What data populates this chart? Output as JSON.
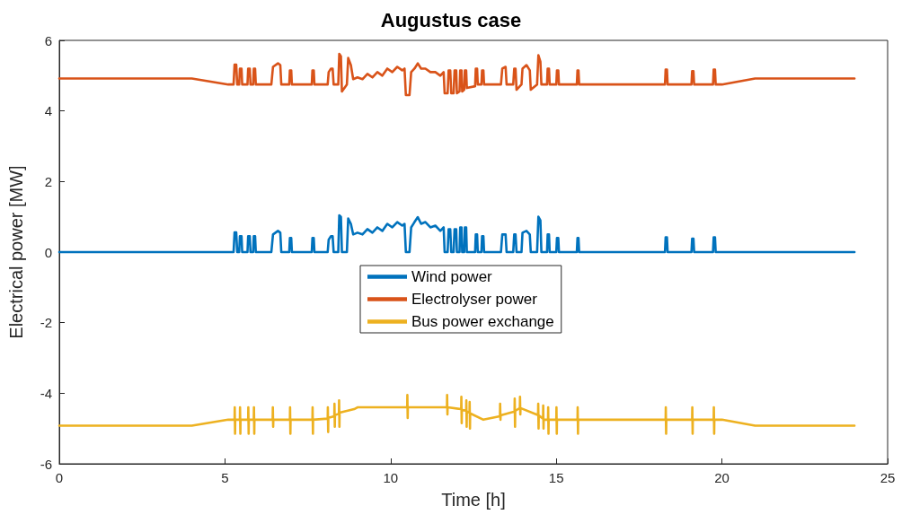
{
  "chart_data": {
    "type": "line",
    "title": "Augustus case",
    "xlabel": "Time [h]",
    "ylabel": "Electrical power [MW]",
    "xlim": [
      0,
      25
    ],
    "xticks": [
      0,
      5,
      10,
      15,
      20,
      25
    ],
    "ylim": [
      -6,
      6
    ],
    "yticks": [
      -6,
      -4,
      -2,
      0,
      2,
      4,
      6
    ],
    "grid": false,
    "legend": "center",
    "marker": "none",
    "line_style": "solid",
    "series": [
      {
        "name": "Wind power",
        "color": "#0072bd",
        "x": [
          0,
          5.26,
          5.29,
          5.34,
          5.37,
          5.43,
          5.45,
          5.5,
          5.52,
          5.68,
          5.7,
          5.75,
          5.77,
          5.85,
          5.87,
          5.91,
          5.93,
          6.4,
          6.45,
          6.6,
          6.67,
          6.7,
          6.94,
          6.96,
          7.0,
          7.02,
          7.62,
          7.64,
          7.68,
          7.7,
          8.1,
          8.13,
          8.2,
          8.25,
          8.28,
          8.42,
          8.45,
          8.5,
          8.53,
          8.68,
          8.72,
          8.8,
          8.87,
          9.0,
          9.15,
          9.3,
          9.45,
          9.6,
          9.75,
          9.9,
          10.05,
          10.2,
          10.35,
          10.42,
          10.46,
          10.57,
          10.62,
          10.72,
          10.82,
          10.92,
          11.05,
          11.2,
          11.35,
          11.5,
          11.6,
          11.63,
          11.72,
          11.75,
          11.8,
          11.83,
          11.9,
          11.93,
          11.98,
          12.0,
          12.08,
          12.1,
          12.14,
          12.16,
          12.22,
          12.24,
          12.28,
          12.3,
          12.55,
          12.57,
          12.61,
          12.63,
          12.74,
          12.76,
          12.8,
          12.82,
          13.33,
          13.37,
          13.47,
          13.5,
          13.7,
          13.73,
          13.77,
          13.8,
          13.95,
          13.98,
          14.1,
          14.2,
          14.23,
          14.42,
          14.46,
          14.52,
          14.55,
          14.72,
          14.74,
          14.78,
          14.8,
          15.0,
          15.02,
          15.06,
          15.08,
          15.62,
          15.64,
          15.67,
          15.69,
          18.28,
          18.3,
          18.34,
          18.36,
          19.08,
          19.1,
          19.14,
          19.16,
          19.73,
          19.75,
          19.79,
          19.81,
          24
        ],
        "values": [
          0,
          0,
          0.56,
          0.56,
          0,
          0,
          0.45,
          0.45,
          0,
          0,
          0.45,
          0.45,
          0,
          0,
          0.45,
          0.45,
          0,
          0,
          0.5,
          0.6,
          0.55,
          0,
          0,
          0.4,
          0.4,
          0,
          0,
          0.4,
          0.4,
          0,
          0,
          0.35,
          0.45,
          0.45,
          0,
          0,
          1.04,
          1.0,
          0,
          0,
          0.95,
          0.8,
          0.5,
          0.55,
          0.5,
          0.65,
          0.55,
          0.7,
          0.6,
          0.8,
          0.7,
          0.85,
          0.75,
          0.8,
          0,
          0,
          0.7,
          0.85,
          0.99,
          0.8,
          0.85,
          0.7,
          0.75,
          0.6,
          0.7,
          0,
          0,
          0.65,
          0.65,
          0,
          0,
          0.65,
          0.65,
          0,
          0,
          0.7,
          0.7,
          0,
          0,
          0.7,
          0.7,
          0,
          0,
          0.5,
          0.5,
          0,
          0,
          0.45,
          0.45,
          0,
          0,
          0.5,
          0.5,
          0,
          0,
          0.5,
          0.5,
          0,
          0,
          0.55,
          0.6,
          0.5,
          0,
          0,
          1.0,
          0.9,
          0,
          0,
          0.5,
          0.5,
          0,
          0,
          0.4,
          0.4,
          0,
          0,
          0.4,
          0.4,
          0,
          0,
          0.42,
          0.42,
          0,
          0,
          0.38,
          0.38,
          0,
          0,
          0.42,
          0.42,
          0,
          0
        ]
      },
      {
        "name": "Electrolyser power",
        "color": "#d95319",
        "x": [
          0,
          4.0,
          5.1,
          5.26,
          5.29,
          5.34,
          5.37,
          5.43,
          5.45,
          5.5,
          5.52,
          5.68,
          5.7,
          5.75,
          5.77,
          5.85,
          5.87,
          5.91,
          5.93,
          6.4,
          6.45,
          6.6,
          6.67,
          6.7,
          6.94,
          6.96,
          7.0,
          7.02,
          7.62,
          7.64,
          7.68,
          7.7,
          8.1,
          8.13,
          8.2,
          8.25,
          8.28,
          8.42,
          8.45,
          8.5,
          8.53,
          8.68,
          8.72,
          8.8,
          8.87,
          9.0,
          9.15,
          9.3,
          9.45,
          9.6,
          9.75,
          9.9,
          10.05,
          10.2,
          10.35,
          10.42,
          10.46,
          10.57,
          10.62,
          10.72,
          10.82,
          10.92,
          11.05,
          11.2,
          11.35,
          11.5,
          11.6,
          11.63,
          11.72,
          11.75,
          11.8,
          11.83,
          11.9,
          11.93,
          11.98,
          12.0,
          12.08,
          12.1,
          12.14,
          12.16,
          12.22,
          12.24,
          12.28,
          12.3,
          12.55,
          12.57,
          12.61,
          12.63,
          12.74,
          12.76,
          12.8,
          12.82,
          13.33,
          13.37,
          13.47,
          13.5,
          13.7,
          13.73,
          13.77,
          13.8,
          13.95,
          13.98,
          14.1,
          14.2,
          14.23,
          14.42,
          14.46,
          14.52,
          14.55,
          14.72,
          14.74,
          14.78,
          14.8,
          15.0,
          15.02,
          15.06,
          15.08,
          15.62,
          15.64,
          15.67,
          15.69,
          18.28,
          18.3,
          18.34,
          18.36,
          19.08,
          19.1,
          19.14,
          19.16,
          19.73,
          19.75,
          19.79,
          19.81,
          20.0,
          21.0,
          24
        ],
        "values": [
          4.92,
          4.92,
          4.75,
          4.75,
          5.31,
          5.31,
          4.75,
          4.75,
          5.2,
          5.2,
          4.75,
          4.75,
          5.2,
          5.2,
          4.75,
          4.75,
          5.2,
          5.2,
          4.75,
          4.75,
          5.25,
          5.35,
          5.3,
          4.75,
          4.75,
          5.15,
          5.15,
          4.75,
          4.75,
          5.15,
          5.15,
          4.75,
          4.75,
          5.1,
          5.2,
          5.2,
          4.75,
          4.75,
          5.62,
          5.55,
          4.55,
          4.75,
          5.5,
          5.3,
          4.9,
          4.95,
          4.9,
          5.05,
          4.95,
          5.1,
          5.0,
          5.2,
          5.1,
          5.25,
          5.15,
          5.2,
          4.45,
          4.45,
          5.1,
          5.2,
          5.35,
          5.2,
          5.2,
          5.1,
          5.1,
          5.0,
          5.1,
          4.5,
          4.5,
          5.15,
          5.15,
          4.5,
          4.5,
          5.15,
          5.15,
          4.5,
          4.55,
          5.15,
          5.15,
          4.55,
          4.6,
          5.15,
          5.15,
          4.65,
          4.7,
          5.2,
          5.2,
          4.75,
          4.75,
          5.15,
          5.15,
          4.75,
          4.75,
          5.2,
          5.25,
          4.75,
          4.75,
          5.2,
          5.2,
          4.6,
          4.75,
          5.2,
          5.3,
          5.15,
          4.6,
          4.75,
          5.58,
          5.4,
          4.75,
          4.75,
          5.2,
          5.2,
          4.75,
          4.75,
          5.15,
          5.15,
          4.75,
          4.75,
          5.15,
          5.15,
          4.75,
          4.75,
          5.17,
          5.17,
          4.75,
          4.75,
          5.13,
          5.13,
          4.75,
          4.75,
          5.17,
          5.17,
          4.75,
          4.75,
          4.92,
          4.92
        ]
      },
      {
        "name": "Bus power exchange",
        "color": "#edb120",
        "x": [
          0,
          4,
          5.1,
          5.29,
          5.295,
          5.305,
          5.31,
          5.45,
          5.455,
          5.465,
          5.47,
          5.7,
          5.705,
          5.715,
          5.72,
          5.87,
          5.875,
          5.885,
          5.89,
          6.44,
          6.445,
          6.455,
          6.46,
          6.96,
          6.965,
          6.975,
          6.98,
          7.64,
          7.645,
          7.655,
          7.66,
          8.1,
          8.105,
          8.115,
          8.12,
          8.3,
          8.305,
          8.315,
          8.32,
          8.44,
          8.445,
          8.455,
          8.46,
          8.9,
          9.0,
          10.5,
          10.505,
          10.515,
          10.52,
          11.7,
          11.705,
          11.715,
          11.72,
          12.13,
          12.135,
          12.145,
          12.15,
          12.28,
          12.285,
          12.295,
          12.3,
          12.38,
          12.385,
          12.395,
          12.4,
          12.8,
          13.3,
          13.305,
          13.315,
          13.32,
          13.74,
          13.745,
          13.755,
          13.76,
          13.9,
          13.905,
          13.915,
          13.92,
          14.45,
          14.455,
          14.465,
          14.47,
          14.6,
          14.605,
          14.615,
          14.62,
          14.75,
          14.755,
          14.765,
          14.77,
          15.0,
          15.005,
          15.015,
          15.02,
          15.64,
          15.645,
          15.655,
          15.66,
          18.3,
          18.305,
          18.315,
          18.32,
          19.1,
          19.105,
          19.115,
          19.12,
          19.75,
          19.755,
          19.765,
          19.77,
          20,
          21,
          24
        ],
        "values": [
          -4.92,
          -4.92,
          -4.75,
          -4.75,
          -4.4,
          -5.15,
          -4.75,
          -4.75,
          -4.4,
          -5.15,
          -4.75,
          -4.75,
          -4.4,
          -5.15,
          -4.75,
          -4.75,
          -4.4,
          -5.15,
          -4.75,
          -4.75,
          -4.4,
          -4.95,
          -4.75,
          -4.75,
          -4.4,
          -5.15,
          -4.75,
          -4.75,
          -4.4,
          -5.15,
          -4.75,
          -4.72,
          -4.4,
          -5.1,
          -4.7,
          -4.65,
          -4.3,
          -4.95,
          -4.62,
          -4.58,
          -4.2,
          -4.95,
          -4.55,
          -4.45,
          -4.4,
          -4.4,
          -4.05,
          -4.7,
          -4.4,
          -4.4,
          -4.05,
          -4.6,
          -4.4,
          -4.45,
          -4.1,
          -4.85,
          -4.47,
          -4.5,
          -4.2,
          -4.95,
          -4.52,
          -4.55,
          -4.25,
          -5.0,
          -4.57,
          -4.75,
          -4.65,
          -4.3,
          -4.75,
          -4.63,
          -4.52,
          -4.15,
          -4.95,
          -4.5,
          -4.42,
          -4.1,
          -4.6,
          -4.42,
          -4.62,
          -4.3,
          -5.0,
          -4.63,
          -4.72,
          -4.35,
          -5.0,
          -4.75,
          -4.75,
          -4.4,
          -5.15,
          -4.75,
          -4.75,
          -4.4,
          -5.15,
          -4.75,
          -4.75,
          -4.4,
          -5.15,
          -4.75,
          -4.75,
          -4.4,
          -5.15,
          -4.75,
          -4.75,
          -4.4,
          -5.15,
          -4.75,
          -4.75,
          -4.4,
          -5.15,
          -4.75,
          -4.75,
          -4.92,
          -4.92
        ]
      }
    ]
  }
}
